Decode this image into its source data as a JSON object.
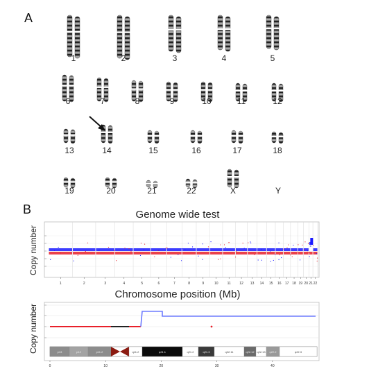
{
  "panels": {
    "a_label": "A",
    "b_label": "B"
  },
  "karyotype": {
    "rows": [
      [
        "1",
        "2",
        "3",
        "4",
        "5"
      ],
      [
        "6",
        "7",
        "8",
        "9",
        "10",
        "11",
        "12"
      ],
      [
        "13",
        "14",
        "15",
        "16",
        "17",
        "18"
      ],
      [
        "19",
        "20",
        "21",
        "22",
        "X",
        "Y"
      ]
    ],
    "arrow_target": "14"
  },
  "genome_plot": {
    "title": "Genome wide test",
    "ylabel": "Copy number",
    "xlabel": "Chromosome position (Mb)",
    "chromosomes": [
      "1",
      "2",
      "3",
      "4",
      "5",
      "6",
      "7",
      "8",
      "9",
      "10",
      "11",
      "12",
      "13",
      "14",
      "15",
      "16",
      "17",
      "18",
      "19",
      "20",
      "21",
      "22"
    ]
  },
  "zoom_plot": {
    "ylabel": "Copy number",
    "x_ticks": [
      "0",
      "10",
      "20",
      "30",
      "40"
    ],
    "bands": [
      "p13",
      "p12",
      "p11.2",
      "",
      "q11.2",
      "q21.1",
      "q21.2",
      "q21.3",
      "q22.11",
      "q22.12",
      "q22.13",
      "q22.2",
      "q22.3"
    ]
  },
  "colors": {
    "high": "#1a1aff",
    "low": "#e8202a",
    "step": "#6d7bff"
  },
  "chart_data": [
    {
      "type": "scatter",
      "title": "Genome wide test",
      "xlabel": "Chromosome position (Mb)",
      "ylabel": "Copy number",
      "categories": [
        "1",
        "2",
        "3",
        "4",
        "5",
        "6",
        "7",
        "8",
        "9",
        "10",
        "11",
        "12",
        "13",
        "14",
        "15",
        "16",
        "17",
        "18",
        "19",
        "20",
        "21",
        "22"
      ],
      "note_gain": "21"
    },
    {
      "type": "line",
      "xlabel": "",
      "ylabel": "Copy number",
      "x_ticks": [
        0,
        10,
        20,
        30,
        40
      ],
      "series": [
        {
          "x": [
            0,
            17,
            17,
            21.5,
            21.5,
            48
          ],
          "y": [
            2,
            2,
            3,
            3,
            2.5,
            2.5
          ]
        }
      ]
    }
  ]
}
